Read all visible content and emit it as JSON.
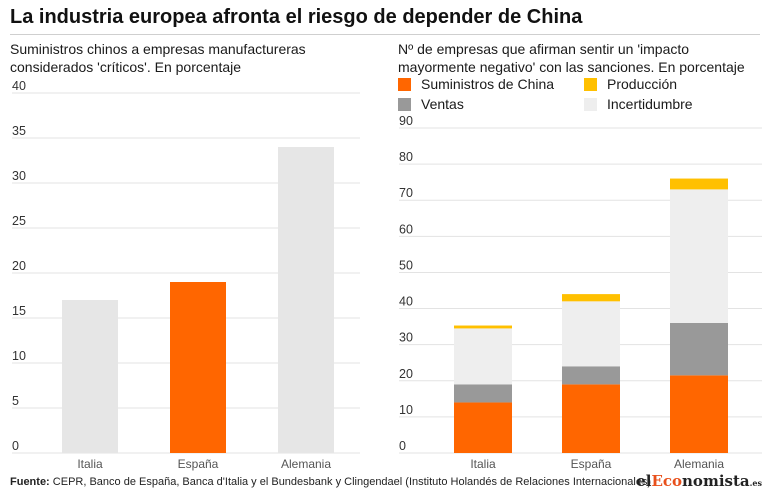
{
  "title": "La industria europea afronta el riesgo de depender de China",
  "left_subtitle": "Suministros chinos a empresas manufactureras considerados 'críticos'. En porcentaje",
  "right_subtitle": "Nº de empresas que afirman sentir un 'impacto mayormente negativo' con las sanciones. En porcentaje",
  "legend": [
    {
      "label": "Suministros de China",
      "color": "#ff6600"
    },
    {
      "label": "Producción",
      "color": "#ffc000"
    },
    {
      "label": "Ventas",
      "color": "#999999"
    },
    {
      "label": "Incertidumbre",
      "color": "#eeeeee"
    }
  ],
  "source": {
    "label": "Fuente:",
    "text": "CEPR, Banco de España, Banca d'Italia y el Bundesbank y Clingendael (Instituto Holandés de Relaciones Internacionales)"
  },
  "brand": {
    "pre": "el",
    "mid": "Eco",
    "post": "nomista",
    "suffix": ".es"
  },
  "chart_data": [
    {
      "type": "bar",
      "categories": [
        "Italia",
        "España",
        "Alemania"
      ],
      "values": [
        17,
        19,
        34
      ],
      "colors": [
        "#e6e6e6",
        "#ff6600",
        "#e6e6e6"
      ],
      "ylim": [
        0,
        40
      ],
      "yticks": [
        0,
        5,
        10,
        15,
        20,
        25,
        30,
        35,
        40
      ],
      "grid": false
    },
    {
      "type": "bar",
      "stacked": true,
      "categories": [
        "Italia",
        "España",
        "Alemania"
      ],
      "series": [
        {
          "name": "Suministros de China",
          "color": "#ff6600",
          "values": [
            14,
            19,
            21.5
          ]
        },
        {
          "name": "Ventas",
          "color": "#999999",
          "values": [
            5,
            5,
            14.5
          ]
        },
        {
          "name": "Incertidumbre",
          "color": "#eeeeee",
          "values": [
            15.5,
            18,
            37
          ]
        },
        {
          "name": "Producción",
          "color": "#ffc000",
          "values": [
            0.8,
            2,
            3
          ]
        }
      ],
      "ylim": [
        0,
        90
      ],
      "yticks": [
        0,
        10,
        20,
        30,
        40,
        50,
        60,
        70,
        80,
        90
      ],
      "grid": false
    }
  ]
}
